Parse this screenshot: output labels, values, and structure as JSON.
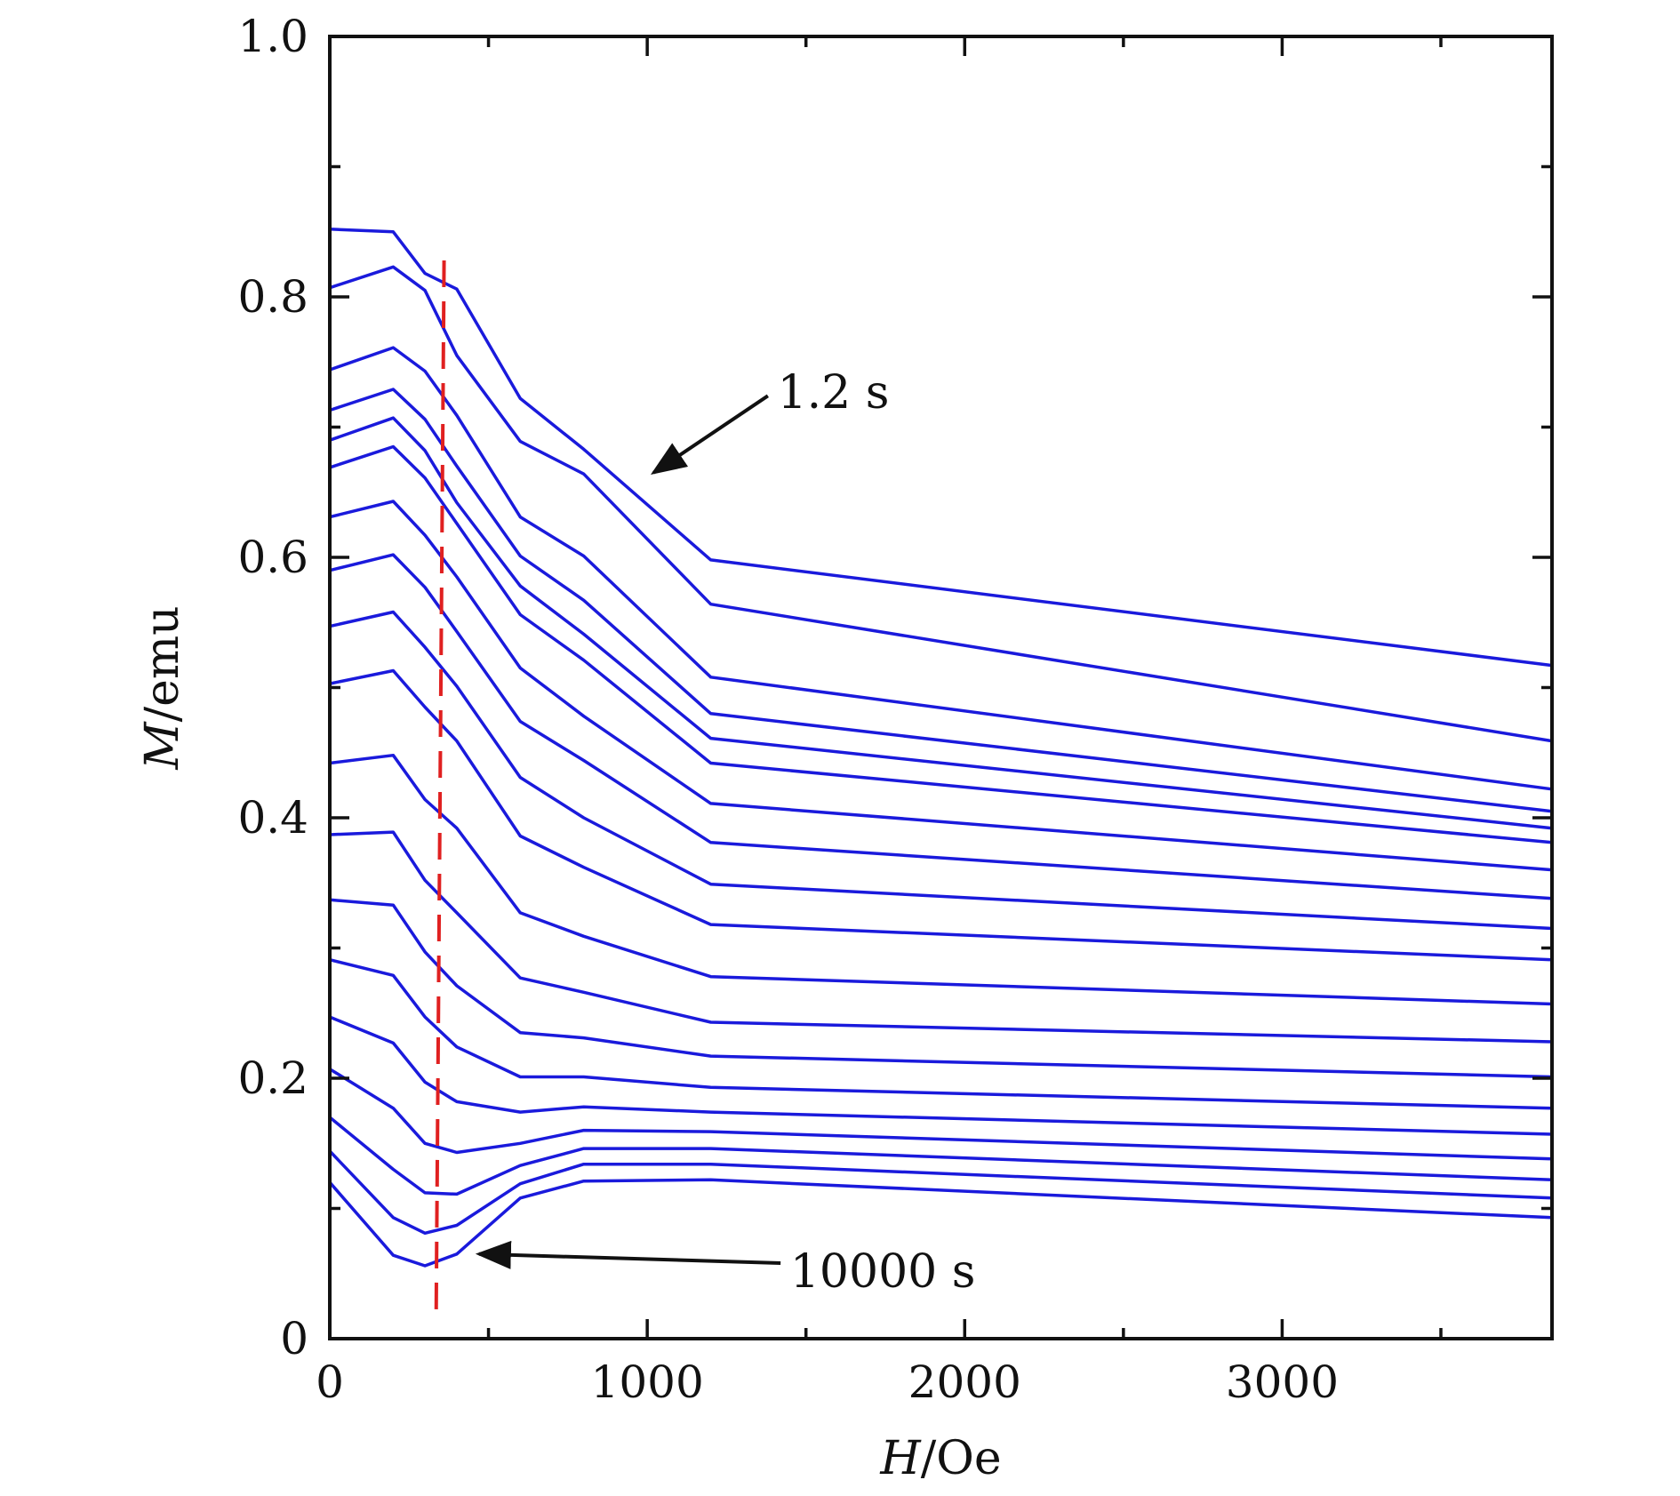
{
  "chart_data": {
    "type": "line",
    "title": "",
    "xlabel": {
      "italic": "H",
      "rest": "/Oe"
    },
    "ylabel": {
      "italic": "M",
      "rest": "/emu"
    },
    "xlim": [
      0,
      3850
    ],
    "ylim": [
      0,
      1.0
    ],
    "x_ticks": [
      0,
      1000,
      2000,
      3000
    ],
    "x_tick_labels": [
      "0",
      "1000",
      "2000",
      "3000"
    ],
    "x_minor_ticks": [
      500,
      1500,
      2500,
      3500
    ],
    "y_ticks": [
      0,
      0.2,
      0.4,
      0.6,
      0.8,
      1.0
    ],
    "y_tick_labels": [
      "0",
      "0.2",
      "0.4",
      "0.6",
      "0.8",
      "1.0"
    ],
    "y_minor_ticks": [
      0.1,
      0.3,
      0.5,
      0.7,
      0.9
    ],
    "grid": false,
    "line_color": "#1a1adc",
    "x": [
      0,
      200,
      300,
      400,
      600,
      800,
      1200,
      3850
    ],
    "series": [
      {
        "values": [
          0.852,
          0.85,
          0.818,
          0.806,
          0.722,
          0.683,
          0.598,
          0.517
        ]
      },
      {
        "values": [
          0.807,
          0.823,
          0.805,
          0.755,
          0.689,
          0.664,
          0.564,
          0.459
        ]
      },
      {
        "values": [
          0.744,
          0.761,
          0.743,
          0.709,
          0.631,
          0.601,
          0.508,
          0.422
        ]
      },
      {
        "values": [
          0.713,
          0.729,
          0.706,
          0.67,
          0.601,
          0.567,
          0.48,
          0.405
        ]
      },
      {
        "values": [
          0.69,
          0.707,
          0.682,
          0.642,
          0.578,
          0.541,
          0.461,
          0.392
        ]
      },
      {
        "values": [
          0.669,
          0.685,
          0.661,
          0.626,
          0.556,
          0.521,
          0.442,
          0.381
        ]
      },
      {
        "values": [
          0.631,
          0.643,
          0.617,
          0.585,
          0.515,
          0.478,
          0.411,
          0.36
        ]
      },
      {
        "values": [
          0.59,
          0.602,
          0.577,
          0.543,
          0.474,
          0.444,
          0.381,
          0.338
        ]
      },
      {
        "values": [
          0.547,
          0.558,
          0.531,
          0.501,
          0.431,
          0.4,
          0.349,
          0.315
        ]
      },
      {
        "values": [
          0.503,
          0.513,
          0.485,
          0.459,
          0.386,
          0.362,
          0.318,
          0.291
        ]
      },
      {
        "values": [
          0.442,
          0.448,
          0.414,
          0.392,
          0.327,
          0.309,
          0.278,
          0.257
        ]
      },
      {
        "values": [
          0.387,
          0.389,
          0.352,
          0.327,
          0.277,
          0.266,
          0.243,
          0.228
        ]
      },
      {
        "values": [
          0.337,
          0.333,
          0.297,
          0.271,
          0.235,
          0.231,
          0.217,
          0.201
        ]
      },
      {
        "values": [
          0.291,
          0.279,
          0.247,
          0.224,
          0.201,
          0.201,
          0.193,
          0.177
        ]
      },
      {
        "values": [
          0.247,
          0.227,
          0.197,
          0.182,
          0.174,
          0.178,
          0.174,
          0.157
        ]
      },
      {
        "values": [
          0.207,
          0.177,
          0.15,
          0.143,
          0.15,
          0.16,
          0.159,
          0.138
        ]
      },
      {
        "values": [
          0.17,
          0.13,
          0.112,
          0.111,
          0.133,
          0.146,
          0.146,
          0.122
        ]
      },
      {
        "values": [
          0.144,
          0.093,
          0.081,
          0.087,
          0.119,
          0.134,
          0.134,
          0.108
        ]
      },
      {
        "values": [
          0.12,
          0.064,
          0.056,
          0.065,
          0.108,
          0.121,
          0.122,
          0.093
        ]
      }
    ],
    "reference_line": {
      "color": "#e02020",
      "style": "dashed",
      "points": [
        [
          360,
          0.828
        ],
        [
          335,
          0.015
        ]
      ]
    },
    "annotations": [
      {
        "text": "1.2 s",
        "text_at": [
          1410,
          0.727
        ],
        "arrow_from": [
          1380,
          0.724
        ],
        "arrow_to": [
          1020,
          0.665
        ]
      },
      {
        "text": "10000 s",
        "text_at": [
          1450,
          0.052
        ],
        "arrow_from": [
          1420,
          0.058
        ],
        "arrow_to": [
          470,
          0.065
        ]
      }
    ]
  }
}
